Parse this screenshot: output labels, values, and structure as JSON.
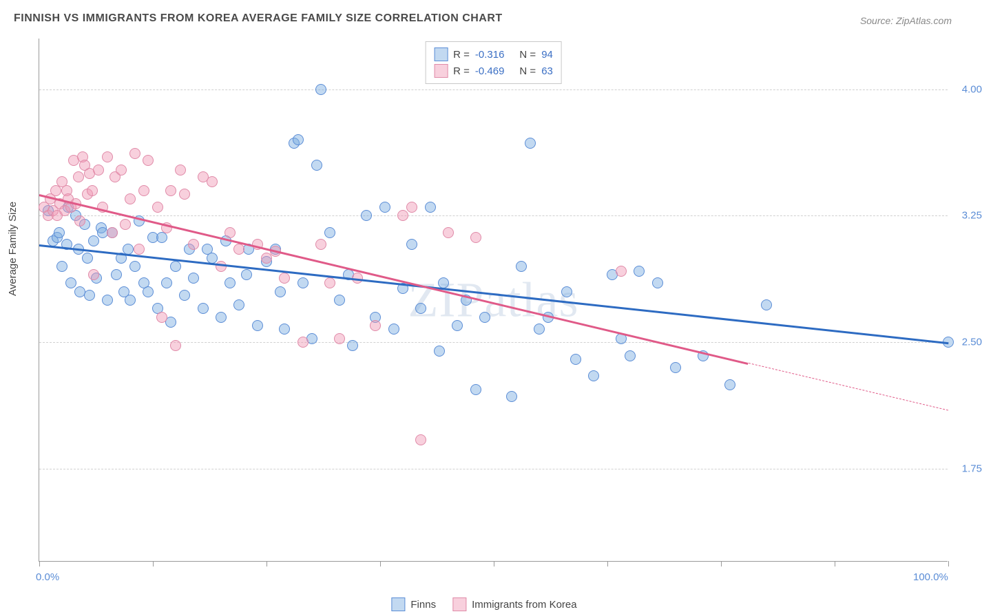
{
  "title": "FINNISH VS IMMIGRANTS FROM KOREA AVERAGE FAMILY SIZE CORRELATION CHART",
  "source": "Source: ZipAtlas.com",
  "watermark": "ZIPatlas",
  "ylabel": "Average Family Size",
  "xaxis": {
    "min_label": "0.0%",
    "max_label": "100.0%",
    "xmin": 0,
    "xmax": 100,
    "tick_positions": [
      0,
      12.5,
      25,
      37.5,
      50,
      62.5,
      75,
      87.5,
      100
    ]
  },
  "yaxis": {
    "ymin": 1.2,
    "ymax": 4.3,
    "ticks": [
      1.75,
      2.5,
      3.25,
      4.0
    ],
    "tick_labels": [
      "1.75",
      "2.50",
      "3.25",
      "4.00"
    ]
  },
  "series": [
    {
      "name": "Finns",
      "fill": "rgba(120,170,225,0.45)",
      "stroke": "#5b8dd6",
      "line_color": "#2d6bc2",
      "R": "-0.316",
      "N": "94",
      "trend": {
        "x1": 0,
        "y1": 3.08,
        "x2": 100,
        "y2": 2.5
      },
      "points": [
        [
          1,
          3.28
        ],
        [
          1.5,
          3.1
        ],
        [
          2,
          3.12
        ],
        [
          2.2,
          3.15
        ],
        [
          2.5,
          2.95
        ],
        [
          3,
          3.08
        ],
        [
          3.2,
          3.3
        ],
        [
          3.5,
          2.85
        ],
        [
          4,
          3.25
        ],
        [
          4.3,
          3.05
        ],
        [
          4.5,
          2.8
        ],
        [
          5,
          3.2
        ],
        [
          5.3,
          3.0
        ],
        [
          5.5,
          2.78
        ],
        [
          6,
          3.1
        ],
        [
          6.3,
          2.88
        ],
        [
          6.8,
          3.18
        ],
        [
          7,
          3.15
        ],
        [
          7.5,
          2.75
        ],
        [
          8,
          3.15
        ],
        [
          8.5,
          2.9
        ],
        [
          9,
          3.0
        ],
        [
          9.3,
          2.8
        ],
        [
          9.8,
          3.05
        ],
        [
          10,
          2.75
        ],
        [
          10.5,
          2.95
        ],
        [
          11,
          3.22
        ],
        [
          11.5,
          2.85
        ],
        [
          12,
          2.8
        ],
        [
          12.5,
          3.12
        ],
        [
          13,
          2.7
        ],
        [
          13.5,
          3.12
        ],
        [
          14,
          2.85
        ],
        [
          14.5,
          2.62
        ],
        [
          15,
          2.95
        ],
        [
          16,
          2.78
        ],
        [
          16.5,
          3.05
        ],
        [
          17,
          2.88
        ],
        [
          18,
          2.7
        ],
        [
          18.5,
          3.05
        ],
        [
          19,
          3.0
        ],
        [
          20,
          2.65
        ],
        [
          20.5,
          3.1
        ],
        [
          21,
          2.85
        ],
        [
          22,
          2.72
        ],
        [
          22.8,
          2.9
        ],
        [
          23,
          3.05
        ],
        [
          24,
          2.6
        ],
        [
          25,
          2.98
        ],
        [
          26,
          3.05
        ],
        [
          26.5,
          2.8
        ],
        [
          27,
          2.58
        ],
        [
          28,
          3.68
        ],
        [
          28.5,
          3.7
        ],
        [
          29,
          2.85
        ],
        [
          30,
          2.52
        ],
        [
          30.5,
          3.55
        ],
        [
          31,
          4.0
        ],
        [
          32,
          3.15
        ],
        [
          33,
          2.75
        ],
        [
          34,
          2.9
        ],
        [
          34.5,
          2.48
        ],
        [
          36,
          3.25
        ],
        [
          37,
          2.65
        ],
        [
          38,
          3.3
        ],
        [
          39,
          2.58
        ],
        [
          40,
          2.82
        ],
        [
          41,
          3.08
        ],
        [
          42,
          2.7
        ],
        [
          43,
          3.3
        ],
        [
          44,
          2.45
        ],
        [
          44.5,
          2.85
        ],
        [
          46,
          2.6
        ],
        [
          47,
          2.75
        ],
        [
          48,
          2.22
        ],
        [
          49,
          2.65
        ],
        [
          52,
          2.18
        ],
        [
          53,
          2.95
        ],
        [
          54,
          3.68
        ],
        [
          55,
          2.58
        ],
        [
          56,
          2.65
        ],
        [
          58,
          2.8
        ],
        [
          59,
          2.4
        ],
        [
          61,
          2.3
        ],
        [
          63,
          2.9
        ],
        [
          64,
          2.52
        ],
        [
          65,
          2.42
        ],
        [
          66,
          2.92
        ],
        [
          68,
          2.85
        ],
        [
          70,
          2.35
        ],
        [
          73,
          2.42
        ],
        [
          76,
          2.25
        ],
        [
          80,
          2.72
        ],
        [
          100,
          2.5
        ]
      ]
    },
    {
      "name": "Immigrants from Korea",
      "fill": "rgba(240,150,180,0.45)",
      "stroke": "#e08aa8",
      "line_color": "#e05a88",
      "R": "-0.469",
      "N": "63",
      "trend": {
        "x1": 0,
        "y1": 3.38,
        "x2": 78,
        "y2": 2.38
      },
      "trend_dash": {
        "x1": 78,
        "y1": 2.38,
        "x2": 100,
        "y2": 2.1
      },
      "points": [
        [
          0.5,
          3.3
        ],
        [
          1,
          3.25
        ],
        [
          1.2,
          3.35
        ],
        [
          1.5,
          3.28
        ],
        [
          1.8,
          3.4
        ],
        [
          2,
          3.25
        ],
        [
          2.3,
          3.32
        ],
        [
          2.5,
          3.45
        ],
        [
          2.8,
          3.28
        ],
        [
          3,
          3.4
        ],
        [
          3.2,
          3.35
        ],
        [
          3.5,
          3.3
        ],
        [
          3.8,
          3.58
        ],
        [
          4,
          3.32
        ],
        [
          4.3,
          3.48
        ],
        [
          4.5,
          3.22
        ],
        [
          4.8,
          3.6
        ],
        [
          5,
          3.55
        ],
        [
          5.3,
          3.38
        ],
        [
          5.5,
          3.5
        ],
        [
          5.8,
          3.4
        ],
        [
          6,
          2.9
        ],
        [
          6.5,
          3.52
        ],
        [
          7,
          3.3
        ],
        [
          7.5,
          3.6
        ],
        [
          8,
          3.15
        ],
        [
          8.3,
          3.48
        ],
        [
          9,
          3.52
        ],
        [
          9.5,
          3.2
        ],
        [
          10,
          3.35
        ],
        [
          10.5,
          3.62
        ],
        [
          11,
          3.05
        ],
        [
          11.5,
          3.4
        ],
        [
          12,
          3.58
        ],
        [
          13,
          3.3
        ],
        [
          13.5,
          2.65
        ],
        [
          14,
          3.18
        ],
        [
          14.5,
          3.4
        ],
        [
          15,
          2.48
        ],
        [
          15.5,
          3.52
        ],
        [
          16,
          3.38
        ],
        [
          17,
          3.08
        ],
        [
          18,
          3.48
        ],
        [
          19,
          3.45
        ],
        [
          20,
          2.95
        ],
        [
          21,
          3.15
        ],
        [
          22,
          3.05
        ],
        [
          24,
          3.08
        ],
        [
          25,
          3.0
        ],
        [
          26,
          3.04
        ],
        [
          27,
          2.88
        ],
        [
          29,
          2.5
        ],
        [
          31,
          3.08
        ],
        [
          32,
          2.85
        ],
        [
          33,
          2.52
        ],
        [
          35,
          2.88
        ],
        [
          37,
          2.6
        ],
        [
          40,
          3.25
        ],
        [
          41,
          3.3
        ],
        [
          42,
          1.92
        ],
        [
          45,
          3.15
        ],
        [
          48,
          3.12
        ],
        [
          64,
          2.92
        ]
      ]
    }
  ],
  "legend": {
    "item1": "Finns",
    "item2": "Immigrants from Korea"
  },
  "colors": {
    "grid": "#d0d0d0",
    "axis": "#999999",
    "title": "#4a4a4a",
    "ytick": "#5b8dd6"
  }
}
